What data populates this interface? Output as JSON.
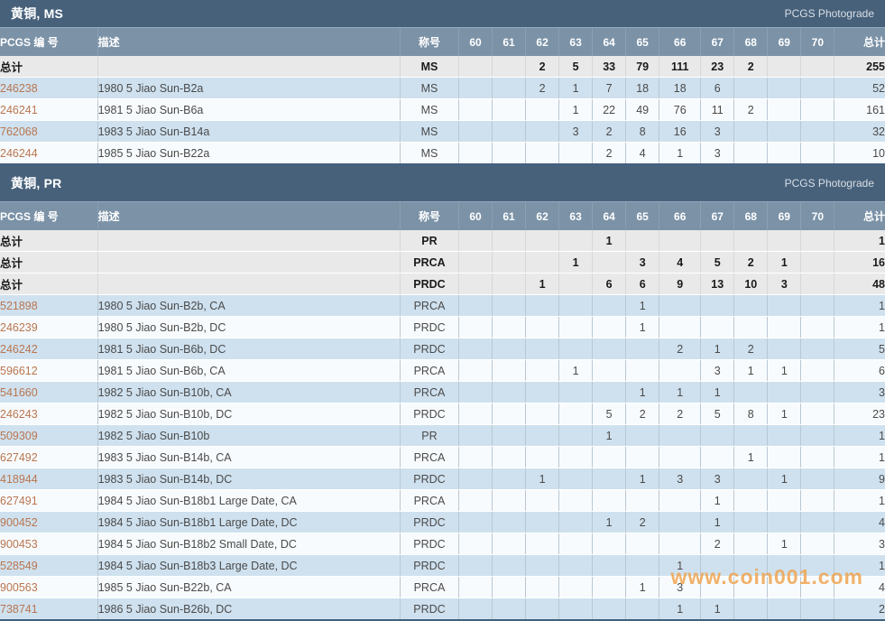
{
  "page": {
    "photograde_label": "PCGS Photograde",
    "watermark": "www.coin001.com"
  },
  "colors": {
    "section_bar": "#47617b",
    "column_header": "#7b92a7",
    "totals_row_bg": "#e9e9e9",
    "row_blue": "#cfe1ef",
    "row_white": "#f8fbfd",
    "link": "#b9764f",
    "watermark": "#f0a24a"
  },
  "columns": {
    "pcgs_number": "PCGS 编 号",
    "description": "描述",
    "designation": "称号",
    "grades": [
      "60",
      "61",
      "62",
      "63",
      "64",
      "65",
      "66",
      "67",
      "68",
      "69",
      "70"
    ],
    "total": "总计",
    "totals_label": "总计"
  },
  "sections": [
    {
      "title": "黄铜, MS",
      "totals": [
        {
          "designation": "MS",
          "grades": [
            "",
            "",
            "2",
            "5",
            "33",
            "79",
            "111",
            "23",
            "2",
            "",
            ""
          ],
          "total": "255"
        }
      ],
      "rows": [
        {
          "number": "246238",
          "description": "1980 5 Jiao Sun-B2a",
          "designation": "MS",
          "grades": [
            "",
            "",
            "2",
            "1",
            "7",
            "18",
            "18",
            "6",
            "",
            "",
            ""
          ],
          "total": "52"
        },
        {
          "number": "246241",
          "description": "1981 5 Jiao Sun-B6a",
          "designation": "MS",
          "grades": [
            "",
            "",
            "",
            "1",
            "22",
            "49",
            "76",
            "11",
            "2",
            "",
            ""
          ],
          "total": "161"
        },
        {
          "number": "762068",
          "description": "1983 5 Jiao Sun-B14a",
          "designation": "MS",
          "grades": [
            "",
            "",
            "",
            "3",
            "2",
            "8",
            "16",
            "3",
            "",
            "",
            ""
          ],
          "total": "32"
        },
        {
          "number": "246244",
          "description": "1985 5 Jiao Sun-B22a",
          "designation": "MS",
          "grades": [
            "",
            "",
            "",
            "",
            "2",
            "4",
            "1",
            "3",
            "",
            "",
            ""
          ],
          "total": "10"
        }
      ]
    },
    {
      "title": "黄铜, PR",
      "totals": [
        {
          "designation": "PR",
          "grades": [
            "",
            "",
            "",
            "",
            "1",
            "",
            "",
            "",
            "",
            "",
            ""
          ],
          "total": "1"
        },
        {
          "designation": "PRCA",
          "grades": [
            "",
            "",
            "",
            "1",
            "",
            "3",
            "4",
            "5",
            "2",
            "1",
            ""
          ],
          "total": "16"
        },
        {
          "designation": "PRDC",
          "grades": [
            "",
            "",
            "1",
            "",
            "6",
            "6",
            "9",
            "13",
            "10",
            "3",
            ""
          ],
          "total": "48"
        }
      ],
      "rows": [
        {
          "number": "521898",
          "description": "1980 5 Jiao Sun-B2b, CA",
          "designation": "PRCA",
          "grades": [
            "",
            "",
            "",
            "",
            "",
            "1",
            "",
            "",
            "",
            "",
            ""
          ],
          "total": "1"
        },
        {
          "number": "246239",
          "description": "1980 5 Jiao Sun-B2b, DC",
          "designation": "PRDC",
          "grades": [
            "",
            "",
            "",
            "",
            "",
            "1",
            "",
            "",
            "",
            "",
            ""
          ],
          "total": "1"
        },
        {
          "number": "246242",
          "description": "1981 5 Jiao Sun-B6b, DC",
          "designation": "PRDC",
          "grades": [
            "",
            "",
            "",
            "",
            "",
            "",
            "2",
            "1",
            "2",
            "",
            ""
          ],
          "total": "5"
        },
        {
          "number": "596612",
          "description": "1981 5 Jiao Sun-B6b, CA",
          "designation": "PRCA",
          "grades": [
            "",
            "",
            "",
            "1",
            "",
            "",
            "",
            "3",
            "1",
            "1",
            ""
          ],
          "total": "6"
        },
        {
          "number": "541660",
          "description": "1982 5 Jiao Sun-B10b, CA",
          "designation": "PRCA",
          "grades": [
            "",
            "",
            "",
            "",
            "",
            "1",
            "1",
            "1",
            "",
            "",
            ""
          ],
          "total": "3"
        },
        {
          "number": "246243",
          "description": "1982 5 Jiao Sun-B10b, DC",
          "designation": "PRDC",
          "grades": [
            "",
            "",
            "",
            "",
            "5",
            "2",
            "2",
            "5",
            "8",
            "1",
            ""
          ],
          "total": "23"
        },
        {
          "number": "509309",
          "description": "1982 5 Jiao Sun-B10b",
          "designation": "PR",
          "grades": [
            "",
            "",
            "",
            "",
            "1",
            "",
            "",
            "",
            "",
            "",
            ""
          ],
          "total": "1"
        },
        {
          "number": "627492",
          "description": "1983 5 Jiao Sun-B14b, CA",
          "designation": "PRCA",
          "grades": [
            "",
            "",
            "",
            "",
            "",
            "",
            "",
            "",
            "1",
            "",
            ""
          ],
          "total": "1"
        },
        {
          "number": "418944",
          "description": "1983 5 Jiao Sun-B14b, DC",
          "designation": "PRDC",
          "grades": [
            "",
            "",
            "1",
            "",
            "",
            "1",
            "3",
            "3",
            "",
            "1",
            ""
          ],
          "total": "9"
        },
        {
          "number": "627491",
          "description": "1984 5 Jiao Sun-B18b1 Large Date, CA",
          "designation": "PRCA",
          "grades": [
            "",
            "",
            "",
            "",
            "",
            "",
            "",
            "1",
            "",
            "",
            ""
          ],
          "total": "1"
        },
        {
          "number": "900452",
          "description": "1984 5 Jiao Sun-B18b1 Large Date, DC",
          "designation": "PRDC",
          "grades": [
            "",
            "",
            "",
            "",
            "1",
            "2",
            "",
            "1",
            "",
            "",
            ""
          ],
          "total": "4"
        },
        {
          "number": "900453",
          "description": "1984 5 Jiao Sun-B18b2 Small Date, DC",
          "designation": "PRDC",
          "grades": [
            "",
            "",
            "",
            "",
            "",
            "",
            "",
            "2",
            "",
            "1",
            ""
          ],
          "total": "3"
        },
        {
          "number": "528549",
          "description": "1984 5 Jiao Sun-B18b3 Large Date, DC",
          "designation": "PRDC",
          "grades": [
            "",
            "",
            "",
            "",
            "",
            "",
            "1",
            "",
            "",
            "",
            ""
          ],
          "total": "1"
        },
        {
          "number": "900563",
          "description": "1985 5 Jiao Sun-B22b, CA",
          "designation": "PRCA",
          "grades": [
            "",
            "",
            "",
            "",
            "",
            "1",
            "3",
            "",
            "",
            "",
            ""
          ],
          "total": "4"
        },
        {
          "number": "738741",
          "description": "1986 5 Jiao Sun-B26b, DC",
          "designation": "PRDC",
          "grades": [
            "",
            "",
            "",
            "",
            "",
            "",
            "1",
            "1",
            "",
            "",
            ""
          ],
          "total": "2"
        }
      ]
    }
  ]
}
